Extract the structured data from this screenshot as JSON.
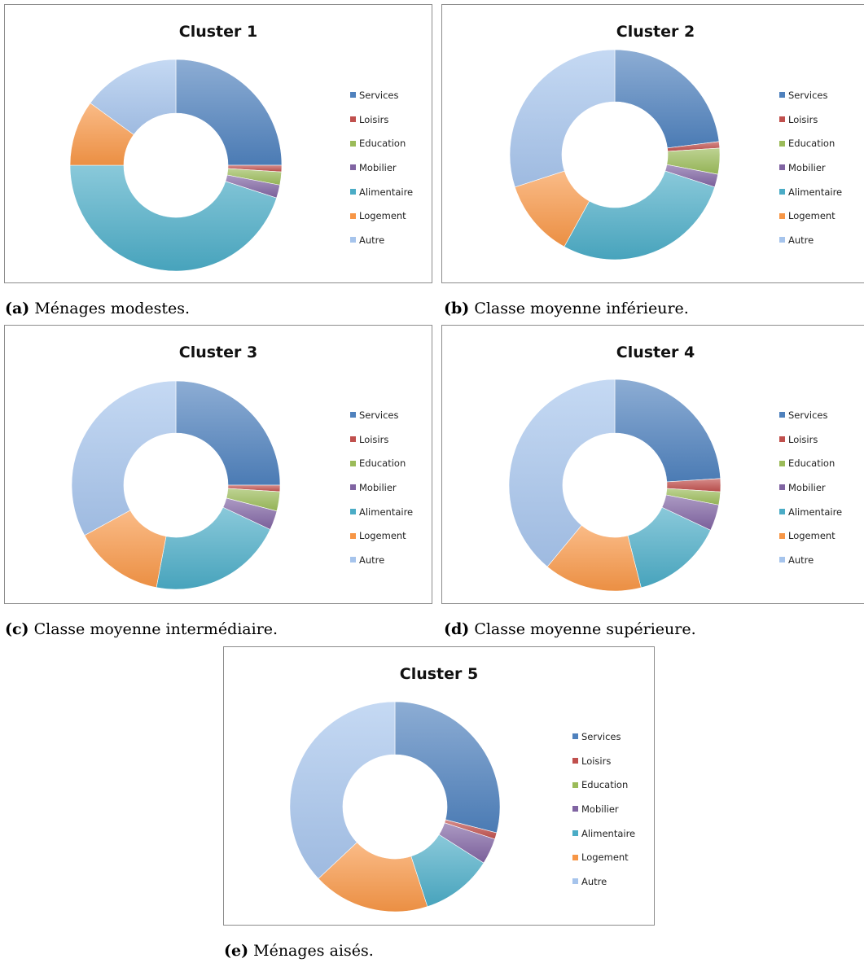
{
  "categories": [
    "Services",
    "Loisirs",
    "Education",
    "Mobilier",
    "Alimentaire",
    "Logement",
    "Autre"
  ],
  "colors": {
    "Services": "#4f81bd",
    "Loisirs": "#c0504d",
    "Education": "#9bbb59",
    "Mobilier": "#8064a2",
    "Alimentaire": "#4bacc6",
    "Logement": "#f79646",
    "Autre": "#a6c4ec"
  },
  "chart_data": [
    {
      "type": "pie",
      "title": "Cluster 1",
      "caption_label": "(a)",
      "caption_text": "Ménages modestes.",
      "categories": [
        "Services",
        "Loisirs",
        "Education",
        "Mobilier",
        "Alimentaire",
        "Logement",
        "Autre"
      ],
      "values": [
        25,
        1,
        2,
        2,
        45,
        10,
        15
      ],
      "legend": "right",
      "donut": true
    },
    {
      "type": "pie",
      "title": "Cluster 2",
      "caption_label": "(b)",
      "caption_text": "Classe moyenne inférieure.",
      "categories": [
        "Services",
        "Loisirs",
        "Education",
        "Mobilier",
        "Alimentaire",
        "Logement",
        "Autre"
      ],
      "values": [
        23,
        1,
        4,
        2,
        28,
        12,
        30
      ],
      "legend": "right",
      "donut": true
    },
    {
      "type": "pie",
      "title": "Cluster 3",
      "caption_label": "(c)",
      "caption_text": "Classe moyenne intermédiaire.",
      "categories": [
        "Services",
        "Loisirs",
        "Education",
        "Mobilier",
        "Alimentaire",
        "Logement",
        "Autre"
      ],
      "values": [
        25,
        1,
        3,
        3,
        21,
        14,
        33
      ],
      "legend": "right",
      "donut": true
    },
    {
      "type": "pie",
      "title": "Cluster 4",
      "caption_label": "(d)",
      "caption_text": "Classe moyenne supérieure.",
      "categories": [
        "Services",
        "Loisirs",
        "Education",
        "Mobilier",
        "Alimentaire",
        "Logement",
        "Autre"
      ],
      "values": [
        24,
        2,
        2,
        4,
        14,
        15,
        39
      ],
      "legend": "right",
      "donut": true
    },
    {
      "type": "pie",
      "title": "Cluster 5",
      "caption_label": "(e)",
      "caption_text": "Ménages aisés.",
      "categories": [
        "Services",
        "Loisirs",
        "Education",
        "Mobilier",
        "Alimentaire",
        "Logement",
        "Autre"
      ],
      "values": [
        29,
        1,
        0,
        4,
        11,
        18,
        37
      ],
      "legend": "right",
      "donut": true
    }
  ]
}
